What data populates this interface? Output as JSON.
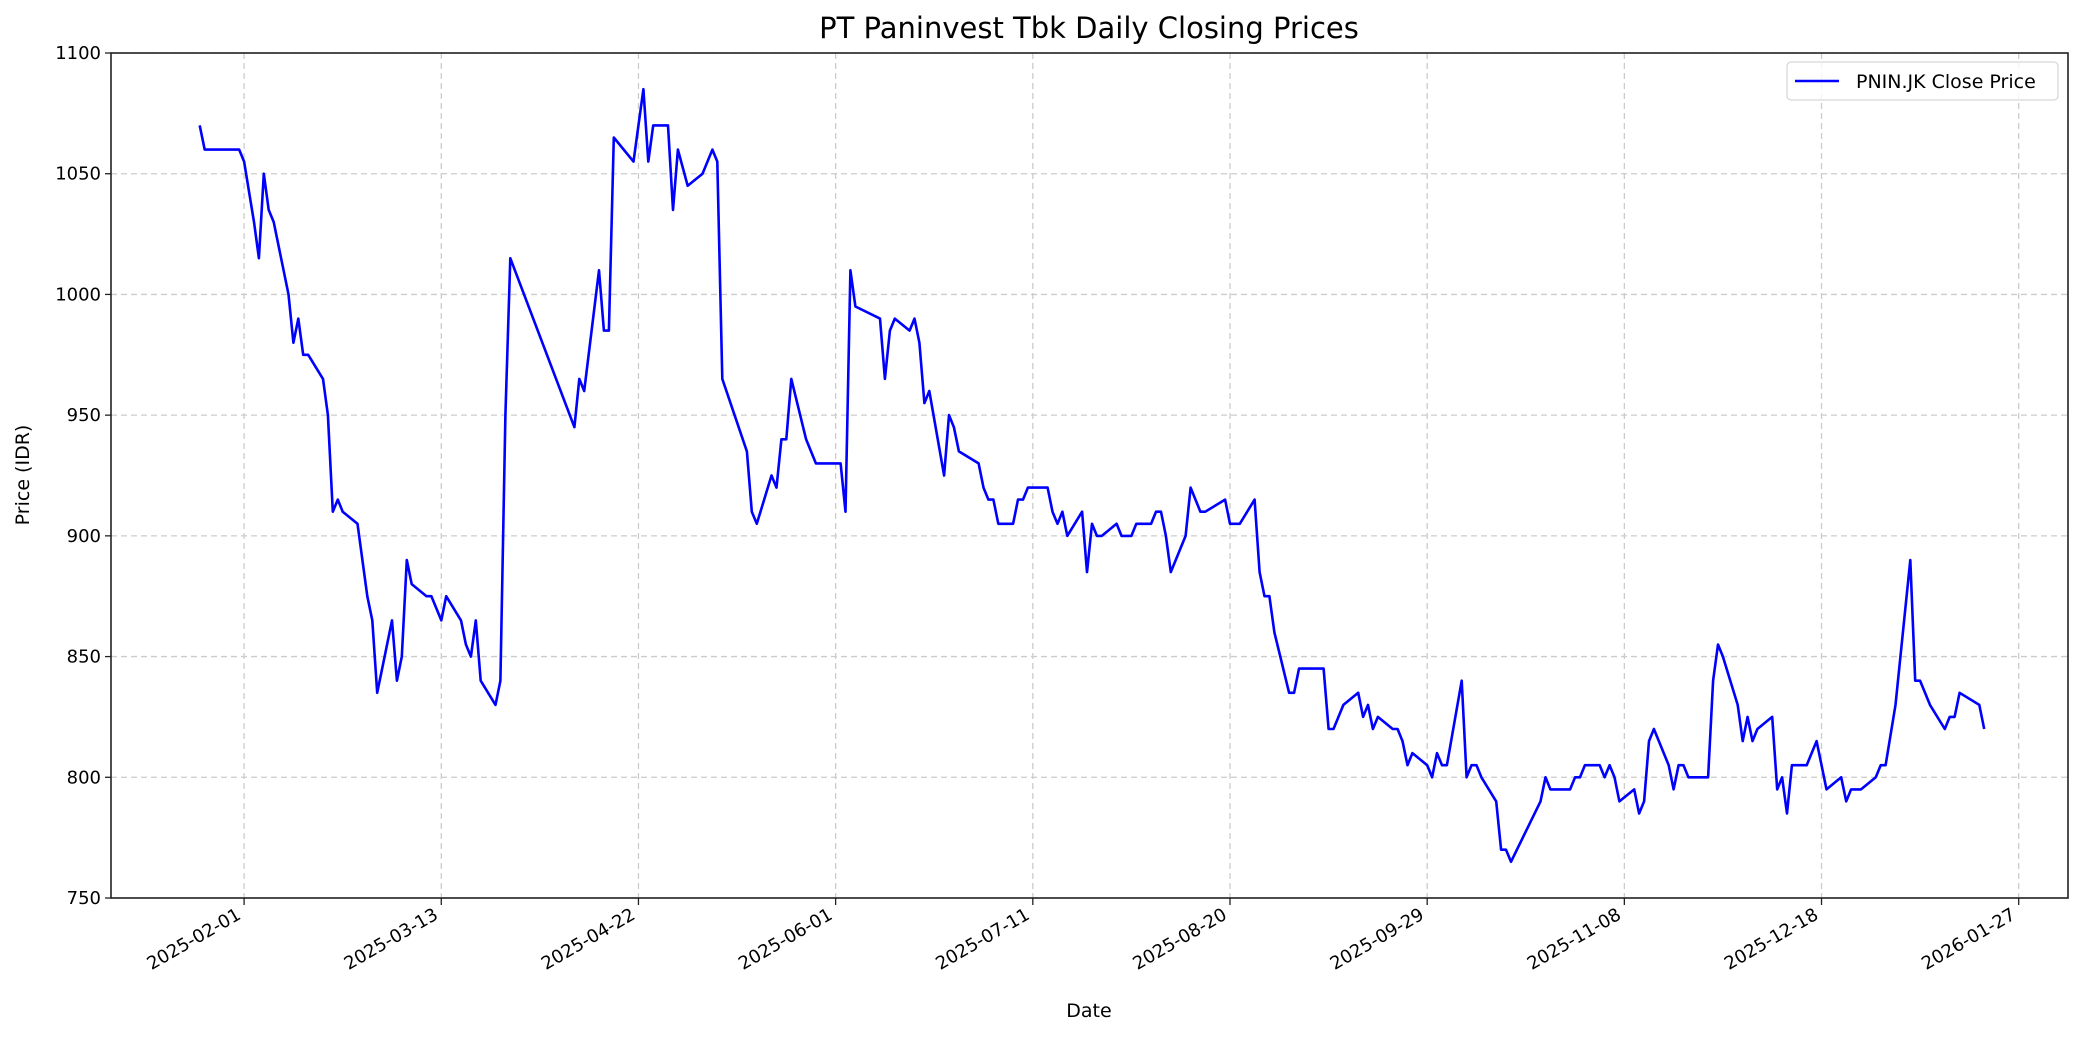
{
  "chart_data": {
    "type": "line",
    "title": "PT Paninvest Tbk Daily Closing Prices",
    "xlabel": "Date",
    "ylabel": "Price (IDR)",
    "xlim": [
      "2025-01-05",
      "2026-02-06"
    ],
    "ylim": [
      750,
      1100
    ],
    "yticks": [
      750,
      800,
      850,
      900,
      950,
      1000,
      1050,
      1100
    ],
    "xticks": [
      "2025-02-01",
      "2025-03-13",
      "2025-04-22",
      "2025-06-01",
      "2025-07-11",
      "2025-08-20",
      "2025-09-29",
      "2025-11-08",
      "2025-12-18",
      "2026-01-27"
    ],
    "grid": true,
    "legend": "top-right",
    "series": [
      {
        "name": "PNIN.JK Close Price",
        "color": "#0000ff",
        "points": [
          [
            "2025-01-23",
            1070
          ],
          [
            "2025-01-24",
            1060
          ],
          [
            "2025-01-31",
            1060
          ],
          [
            "2025-02-01",
            1055
          ],
          [
            "2025-02-03",
            1030
          ],
          [
            "2025-02-04",
            1015
          ],
          [
            "2025-02-05",
            1050
          ],
          [
            "2025-02-06",
            1035
          ],
          [
            "2025-02-07",
            1030
          ],
          [
            "2025-02-10",
            1000
          ],
          [
            "2025-02-11",
            980
          ],
          [
            "2025-02-12",
            990
          ],
          [
            "2025-02-13",
            975
          ],
          [
            "2025-02-14",
            975
          ],
          [
            "2025-02-17",
            965
          ],
          [
            "2025-02-18",
            950
          ],
          [
            "2025-02-19",
            910
          ],
          [
            "2025-02-20",
            915
          ],
          [
            "2025-02-21",
            910
          ],
          [
            "2025-02-24",
            905
          ],
          [
            "2025-02-26",
            875
          ],
          [
            "2025-02-27",
            865
          ],
          [
            "2025-02-28",
            835
          ],
          [
            "2025-03-03",
            865
          ],
          [
            "2025-03-04",
            840
          ],
          [
            "2025-03-05",
            850
          ],
          [
            "2025-03-06",
            890
          ],
          [
            "2025-03-07",
            880
          ],
          [
            "2025-03-10",
            875
          ],
          [
            "2025-03-11",
            875
          ],
          [
            "2025-03-13",
            865
          ],
          [
            "2025-03-14",
            875
          ],
          [
            "2025-03-17",
            865
          ],
          [
            "2025-03-18",
            855
          ],
          [
            "2025-03-19",
            850
          ],
          [
            "2025-03-20",
            865
          ],
          [
            "2025-03-21",
            840
          ],
          [
            "2025-03-24",
            830
          ],
          [
            "2025-03-25",
            840
          ],
          [
            "2025-03-26",
            950
          ],
          [
            "2025-03-27",
            1015
          ],
          [
            "2025-04-09",
            945
          ],
          [
            "2025-04-10",
            965
          ],
          [
            "2025-04-11",
            960
          ],
          [
            "2025-04-14",
            1010
          ],
          [
            "2025-04-15",
            985
          ],
          [
            "2025-04-16",
            985
          ],
          [
            "2025-04-17",
            1065
          ],
          [
            "2025-04-21",
            1055
          ],
          [
            "2025-04-23",
            1085
          ],
          [
            "2025-04-24",
            1055
          ],
          [
            "2025-04-25",
            1070
          ],
          [
            "2025-04-28",
            1070
          ],
          [
            "2025-04-29",
            1035
          ],
          [
            "2025-04-30",
            1060
          ],
          [
            "2025-05-02",
            1045
          ],
          [
            "2025-05-05",
            1050
          ],
          [
            "2025-05-07",
            1060
          ],
          [
            "2025-05-08",
            1055
          ],
          [
            "2025-05-09",
            965
          ],
          [
            "2025-05-14",
            935
          ],
          [
            "2025-05-15",
            910
          ],
          [
            "2025-05-16",
            905
          ],
          [
            "2025-05-19",
            925
          ],
          [
            "2025-05-20",
            920
          ],
          [
            "2025-05-21",
            940
          ],
          [
            "2025-05-22",
            940
          ],
          [
            "2025-05-23",
            965
          ],
          [
            "2025-05-26",
            940
          ],
          [
            "2025-05-28",
            930
          ],
          [
            "2025-06-02",
            930
          ],
          [
            "2025-06-03",
            910
          ],
          [
            "2025-06-04",
            1010
          ],
          [
            "2025-06-05",
            995
          ],
          [
            "2025-06-10",
            990
          ],
          [
            "2025-06-11",
            965
          ],
          [
            "2025-06-12",
            985
          ],
          [
            "2025-06-13",
            990
          ],
          [
            "2025-06-16",
            985
          ],
          [
            "2025-06-17",
            990
          ],
          [
            "2025-06-18",
            980
          ],
          [
            "2025-06-19",
            955
          ],
          [
            "2025-06-20",
            960
          ],
          [
            "2025-06-23",
            925
          ],
          [
            "2025-06-24",
            950
          ],
          [
            "2025-06-25",
            945
          ],
          [
            "2025-06-26",
            935
          ],
          [
            "2025-06-30",
            930
          ],
          [
            "2025-07-01",
            920
          ],
          [
            "2025-07-02",
            915
          ],
          [
            "2025-07-03",
            915
          ],
          [
            "2025-07-04",
            905
          ],
          [
            "2025-07-07",
            905
          ],
          [
            "2025-07-08",
            915
          ],
          [
            "2025-07-09",
            915
          ],
          [
            "2025-07-10",
            920
          ],
          [
            "2025-07-14",
            920
          ],
          [
            "2025-07-15",
            910
          ],
          [
            "2025-07-16",
            905
          ],
          [
            "2025-07-17",
            910
          ],
          [
            "2025-07-18",
            900
          ],
          [
            "2025-07-21",
            910
          ],
          [
            "2025-07-22",
            885
          ],
          [
            "2025-07-23",
            905
          ],
          [
            "2025-07-24",
            900
          ],
          [
            "2025-07-25",
            900
          ],
          [
            "2025-07-28",
            905
          ],
          [
            "2025-07-29",
            900
          ],
          [
            "2025-07-31",
            900
          ],
          [
            "2025-08-01",
            905
          ],
          [
            "2025-08-04",
            905
          ],
          [
            "2025-08-05",
            910
          ],
          [
            "2025-08-06",
            910
          ],
          [
            "2025-08-07",
            900
          ],
          [
            "2025-08-08",
            885
          ],
          [
            "2025-08-11",
            900
          ],
          [
            "2025-08-12",
            920
          ],
          [
            "2025-08-14",
            910
          ],
          [
            "2025-08-15",
            910
          ],
          [
            "2025-08-19",
            915
          ],
          [
            "2025-08-20",
            905
          ],
          [
            "2025-08-22",
            905
          ],
          [
            "2025-08-25",
            915
          ],
          [
            "2025-08-26",
            885
          ],
          [
            "2025-08-27",
            875
          ],
          [
            "2025-08-28",
            875
          ],
          [
            "2025-08-29",
            860
          ],
          [
            "2025-09-01",
            835
          ],
          [
            "2025-09-02",
            835
          ],
          [
            "2025-09-03",
            845
          ],
          [
            "2025-09-08",
            845
          ],
          [
            "2025-09-09",
            820
          ],
          [
            "2025-09-10",
            820
          ],
          [
            "2025-09-12",
            830
          ],
          [
            "2025-09-15",
            835
          ],
          [
            "2025-09-16",
            825
          ],
          [
            "2025-09-17",
            830
          ],
          [
            "2025-09-18",
            820
          ],
          [
            "2025-09-19",
            825
          ],
          [
            "2025-09-22",
            820
          ],
          [
            "2025-09-23",
            820
          ],
          [
            "2025-09-24",
            815
          ],
          [
            "2025-09-25",
            805
          ],
          [
            "2025-09-26",
            810
          ],
          [
            "2025-09-29",
            805
          ],
          [
            "2025-09-30",
            800
          ],
          [
            "2025-10-01",
            810
          ],
          [
            "2025-10-02",
            805
          ],
          [
            "2025-10-03",
            805
          ],
          [
            "2025-10-06",
            840
          ],
          [
            "2025-10-07",
            800
          ],
          [
            "2025-10-08",
            805
          ],
          [
            "2025-10-09",
            805
          ],
          [
            "2025-10-10",
            800
          ],
          [
            "2025-10-13",
            790
          ],
          [
            "2025-10-14",
            770
          ],
          [
            "2025-10-15",
            770
          ],
          [
            "2025-10-16",
            765
          ],
          [
            "2025-10-22",
            790
          ],
          [
            "2025-10-23",
            800
          ],
          [
            "2025-10-24",
            795
          ],
          [
            "2025-10-28",
            795
          ],
          [
            "2025-10-29",
            800
          ],
          [
            "2025-10-30",
            800
          ],
          [
            "2025-10-31",
            805
          ],
          [
            "2025-11-03",
            805
          ],
          [
            "2025-11-04",
            800
          ],
          [
            "2025-11-05",
            805
          ],
          [
            "2025-11-06",
            800
          ],
          [
            "2025-11-07",
            790
          ],
          [
            "2025-11-10",
            795
          ],
          [
            "2025-11-11",
            785
          ],
          [
            "2025-11-12",
            790
          ],
          [
            "2025-11-13",
            815
          ],
          [
            "2025-11-14",
            820
          ],
          [
            "2025-11-17",
            805
          ],
          [
            "2025-11-18",
            795
          ],
          [
            "2025-11-19",
            805
          ],
          [
            "2025-11-20",
            805
          ],
          [
            "2025-11-21",
            800
          ],
          [
            "2025-11-25",
            800
          ],
          [
            "2025-11-26",
            840
          ],
          [
            "2025-11-27",
            855
          ],
          [
            "2025-11-28",
            850
          ],
          [
            "2025-12-01",
            830
          ],
          [
            "2025-12-02",
            815
          ],
          [
            "2025-12-03",
            825
          ],
          [
            "2025-12-04",
            815
          ],
          [
            "2025-12-05",
            820
          ],
          [
            "2025-12-08",
            825
          ],
          [
            "2025-12-09",
            795
          ],
          [
            "2025-12-10",
            800
          ],
          [
            "2025-12-11",
            785
          ],
          [
            "2025-12-12",
            805
          ],
          [
            "2025-12-15",
            805
          ],
          [
            "2025-12-17",
            815
          ],
          [
            "2025-12-19",
            795
          ],
          [
            "2025-12-22",
            800
          ],
          [
            "2025-12-23",
            790
          ],
          [
            "2025-12-24",
            795
          ],
          [
            "2025-12-26",
            795
          ],
          [
            "2025-12-29",
            800
          ],
          [
            "2025-12-30",
            805
          ],
          [
            "2025-12-31",
            805
          ],
          [
            "2026-01-02",
            830
          ],
          [
            "2026-01-05",
            890
          ],
          [
            "2026-01-06",
            840
          ],
          [
            "2026-01-07",
            840
          ],
          [
            "2026-01-09",
            830
          ],
          [
            "2026-01-12",
            820
          ],
          [
            "2026-01-13",
            825
          ],
          [
            "2026-01-14",
            825
          ],
          [
            "2026-01-15",
            835
          ],
          [
            "2026-01-19",
            830
          ],
          [
            "2026-01-20",
            820
          ]
        ]
      }
    ]
  }
}
